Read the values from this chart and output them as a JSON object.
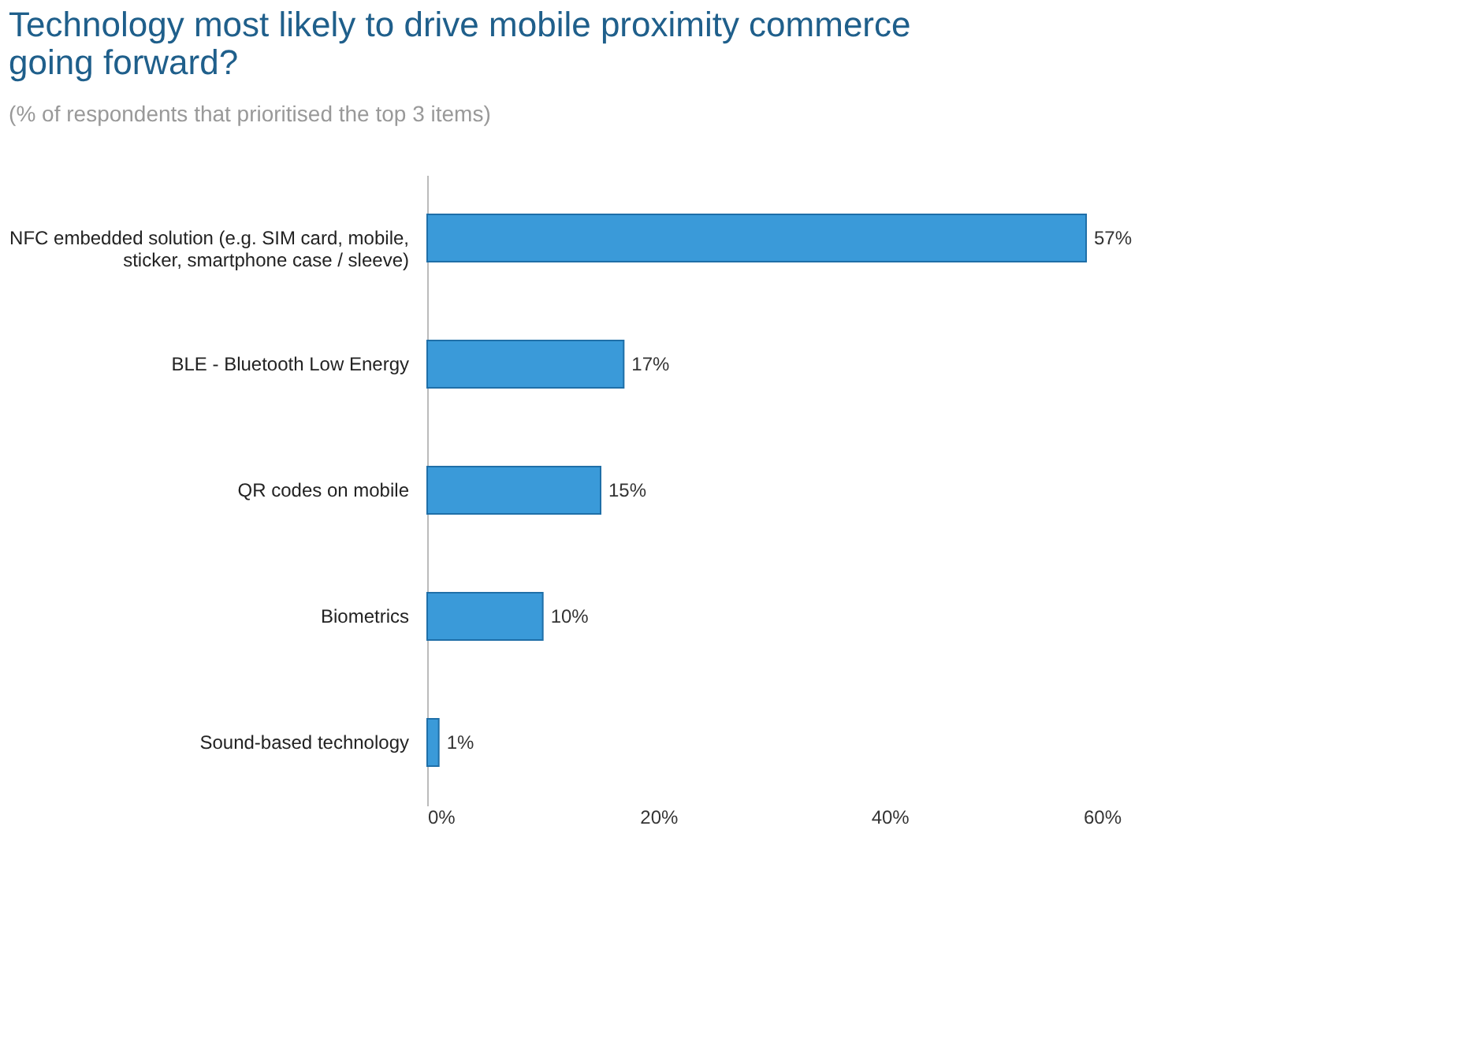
{
  "chart_data": {
    "type": "bar",
    "orientation": "horizontal",
    "title": "Technology most likely to drive mobile proximity commerce going forward?",
    "subtitle": "(% of respondents that prioritised the top 3 items)",
    "categories": [
      "NFC embedded solution (e.g. SIM card, mobile, sticker, smartphone case / sleeve)",
      "BLE - Bluetooth Low Energy",
      "QR codes on mobile",
      "Biometrics",
      "Sound-based technology"
    ],
    "values": [
      57,
      17,
      15,
      10,
      1
    ],
    "color": "#3a9ad9",
    "xlim": [
      0,
      60
    ],
    "xticks": [
      {
        "value": 0,
        "label": "0%"
      },
      {
        "value": 20,
        "label": "20%"
      },
      {
        "value": 40,
        "label": "40%"
      },
      {
        "value": 60,
        "label": "60%"
      }
    ],
    "value_labels": [
      "57%",
      "17%",
      "15%",
      "10%",
      "1%"
    ],
    "grid": false
  }
}
